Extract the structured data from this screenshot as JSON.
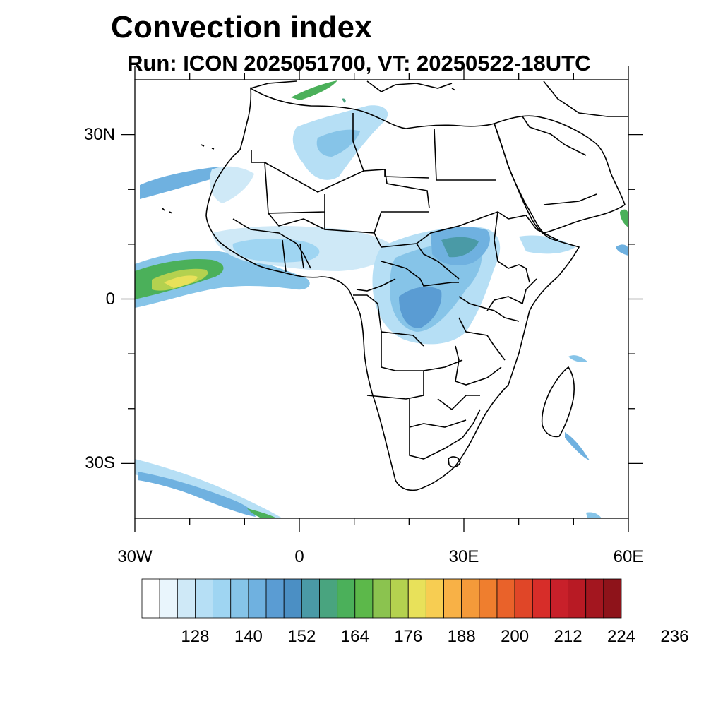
{
  "title": "Convection index",
  "subtitle": "Run: ICON 2025051700,  VT: 20250522-18UTC",
  "map": {
    "lon_range": [
      -30,
      60
    ],
    "lat_range": [
      -40,
      40
    ],
    "x_ticks": [
      {
        "lon": -30,
        "label": "30W"
      },
      {
        "lon": 0,
        "label": "0"
      },
      {
        "lon": 30,
        "label": "30E"
      },
      {
        "lon": 60,
        "label": "60E"
      }
    ],
    "y_ticks": [
      {
        "lat": 30,
        "label": "30N"
      },
      {
        "lat": 0,
        "label": "0"
      },
      {
        "lat": -30,
        "label": "30S"
      }
    ],
    "minor_lon_ticks": [
      -20,
      -10,
      10,
      20,
      40,
      50
    ],
    "minor_lat_ticks": [
      20,
      10,
      -10,
      -20
    ]
  },
  "colorbar": {
    "colors": [
      "#ffffff",
      "#e9f5fc",
      "#cfe9f7",
      "#b6dff5",
      "#9fd5f2",
      "#86c4e8",
      "#6fb1e0",
      "#5a9cd3",
      "#4b8fc4",
      "#4a9aa6",
      "#49a47f",
      "#4bb05a",
      "#5cb84a",
      "#8bc34f",
      "#b4d14f",
      "#e8e15a",
      "#f7cd52",
      "#f8b146",
      "#f49a3a",
      "#ef7e2e",
      "#e9622a",
      "#e04628",
      "#d72d29",
      "#c8202a",
      "#b81a24",
      "#a3161f",
      "#8e131a"
    ],
    "labels": [
      "128",
      "140",
      "152",
      "164",
      "176",
      "188",
      "200",
      "212",
      "224",
      "236"
    ]
  }
}
